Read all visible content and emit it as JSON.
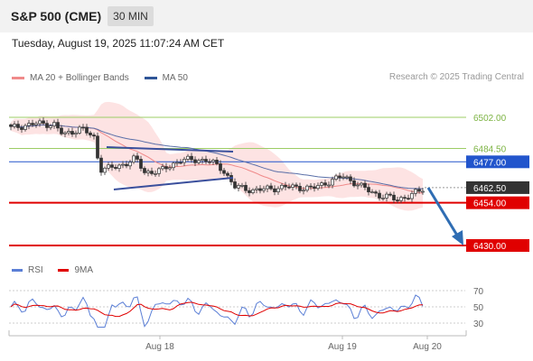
{
  "header": {
    "instrument": "S&P 500 (CME)",
    "interval": "30 MIN"
  },
  "datetime": "Tuesday, August 19, 2025 11:07:24 AM CET",
  "legend": {
    "bollinger_label": "MA 20 + Bollinger Bands",
    "ma50_label": "MA 50",
    "rsi_label": "RSI",
    "rsi_ma_label": "9MA"
  },
  "credit": "Research © 2025 Trading Central",
  "colors": {
    "bollinger": "#f08a8a",
    "ma50": "#2f5597",
    "resistance_green": "#9ccc65",
    "support_red": "#e00000",
    "pivot_blue": "#2255cc",
    "current": "#333333",
    "forecast_arrow": "#2f6db3",
    "rsi": "#5b7fd6",
    "rsi_ma": "#e00000"
  },
  "chart_data": [
    {
      "type": "candlestick",
      "title": "S&P 500 (CME)",
      "timeframe": "30 MIN",
      "x_tick_labels": [
        "Aug 18",
        "Aug 19",
        "Aug 20"
      ],
      "ylim": [
        6426,
        6512
      ],
      "levels": [
        {
          "label": "6502.00",
          "value": 6502.0,
          "kind": "resistance"
        },
        {
          "label": "6484.50",
          "value": 6484.5,
          "kind": "resistance"
        },
        {
          "label": "6477.00",
          "value": 6477.0,
          "kind": "pivot"
        },
        {
          "label": "6462.50",
          "value": 6462.5,
          "kind": "current"
        },
        {
          "label": "6454.00",
          "value": 6454.0,
          "kind": "support"
        },
        {
          "label": "6430.00",
          "value": 6430.0,
          "kind": "support"
        }
      ],
      "series": [
        {
          "name": "MA 20 + Bollinger Bands"
        },
        {
          "name": "MA 50"
        }
      ],
      "forecast": {
        "from": 6462.5,
        "to": 6430.0,
        "direction": "down"
      }
    },
    {
      "type": "line",
      "series": [
        {
          "name": "RSI"
        },
        {
          "name": "9MA"
        }
      ],
      "y_tick_labels": [
        "70",
        "50",
        "30"
      ],
      "ylim": [
        20,
        80
      ]
    }
  ]
}
